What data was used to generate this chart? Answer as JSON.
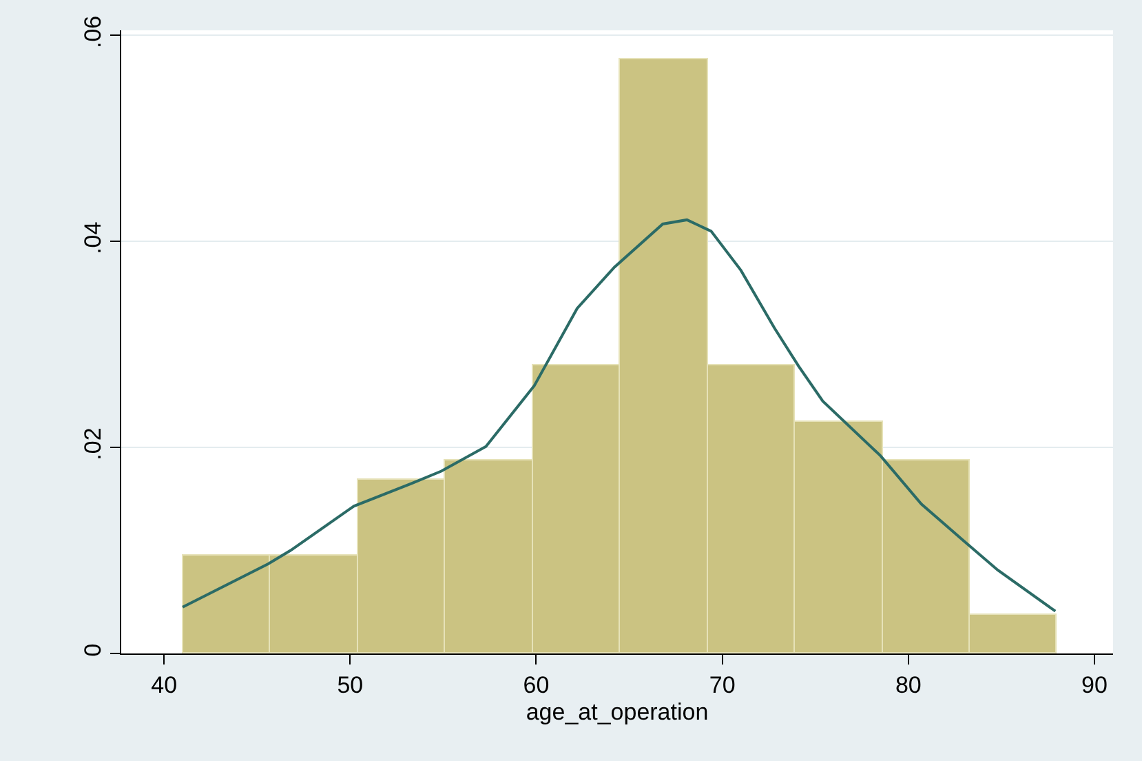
{
  "chart_data": {
    "type": "histogram",
    "xlabel": "age_at_operation",
    "bins": [
      41,
      45.7,
      50.4,
      55.1,
      59.8,
      64.5,
      69.2,
      73.9,
      78.6,
      83.3,
      88
    ],
    "series": [
      {
        "color": "#cbc382",
        "values": [
          0.0095,
          0.0095,
          0.0169,
          0.0188,
          0.028,
          0.0577,
          0.028,
          0.0225,
          0.0188,
          0.0038
        ]
      },
      {
        "type": "line",
        "color": "#2b6b66",
        "x": [
          41,
          45.6,
          46.8,
          50.2,
          53.3,
          54.9,
          57.3,
          59.9,
          62.2,
          64.2,
          66.8,
          68.1,
          69.4,
          71,
          72.8,
          74.1,
          75.4,
          78.5,
          80.7,
          83,
          84.8,
          87.9
        ],
        "values": [
          0.0045,
          0.0087,
          0.01,
          0.0143,
          0.0165,
          0.0177,
          0.0201,
          0.026,
          0.0335,
          0.0375,
          0.0417,
          0.0421,
          0.041,
          0.0372,
          0.0316,
          0.0279,
          0.0245,
          0.0192,
          0.0145,
          0.0109,
          0.0081,
          0.0041
        ]
      }
    ],
    "xlim": [
      37.7,
      91
    ],
    "xticks": [
      40,
      50,
      60,
      70,
      80,
      90
    ],
    "ylim": [
      0,
      0.0605
    ],
    "yticks": [
      {
        "value": 0,
        "label": "0"
      },
      {
        "value": 0.02,
        "label": ".02"
      },
      {
        "value": 0.04,
        "label": ".04"
      },
      {
        "value": 0.06,
        "label": ".06"
      }
    ],
    "grid": "y"
  }
}
